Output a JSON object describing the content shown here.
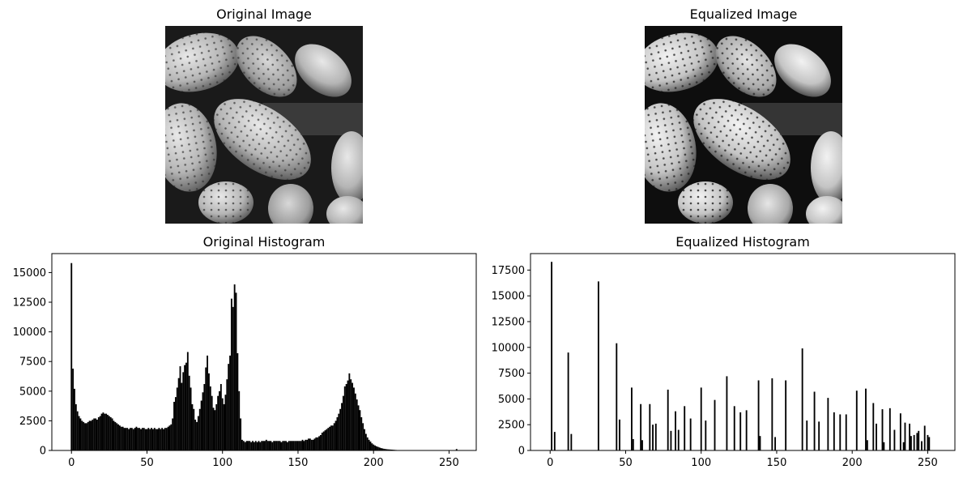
{
  "colors": {
    "bars": "#000000",
    "axes": "#000000",
    "background": "#ffffff"
  },
  "panels": {
    "original_image": {
      "title": "Original Image"
    },
    "equalized_image": {
      "title": "Equalized Image"
    },
    "original_histogram": {
      "title": "Original Histogram"
    },
    "equalized_histogram": {
      "title": "Equalized Histogram"
    }
  },
  "chart_data": [
    {
      "type": "bar",
      "title": "Original Histogram",
      "xlabel": "",
      "ylabel": "",
      "xlim": [
        -13,
        268
      ],
      "ylim": [
        0,
        16600
      ],
      "xticks": [
        0,
        50,
        100,
        150,
        200,
        250
      ],
      "yticks": [
        0,
        2500,
        5000,
        7500,
        10000,
        12500,
        15000
      ],
      "bins": [
        [
          0,
          15800
        ],
        [
          1,
          6900
        ],
        [
          2,
          5200
        ],
        [
          3,
          3900
        ],
        [
          4,
          3300
        ],
        [
          5,
          2900
        ],
        [
          6,
          2700
        ],
        [
          7,
          2500
        ],
        [
          8,
          2400
        ],
        [
          9,
          2300
        ],
        [
          10,
          2300
        ],
        [
          11,
          2400
        ],
        [
          12,
          2500
        ],
        [
          13,
          2500
        ],
        [
          14,
          2600
        ],
        [
          15,
          2700
        ],
        [
          16,
          2700
        ],
        [
          17,
          2600
        ],
        [
          18,
          2800
        ],
        [
          19,
          2900
        ],
        [
          20,
          3100
        ],
        [
          21,
          3200
        ],
        [
          22,
          3100
        ],
        [
          23,
          3100
        ],
        [
          24,
          3000
        ],
        [
          25,
          2900
        ],
        [
          26,
          2800
        ],
        [
          27,
          2700
        ],
        [
          28,
          2500
        ],
        [
          29,
          2400
        ],
        [
          30,
          2300
        ],
        [
          31,
          2200
        ],
        [
          32,
          2100
        ],
        [
          33,
          2000
        ],
        [
          34,
          2000
        ],
        [
          35,
          1900
        ],
        [
          36,
          1900
        ],
        [
          37,
          1900
        ],
        [
          38,
          1800
        ],
        [
          39,
          1900
        ],
        [
          40,
          1900
        ],
        [
          41,
          1800
        ],
        [
          42,
          1900
        ],
        [
          43,
          2000
        ],
        [
          44,
          1900
        ],
        [
          45,
          1900
        ],
        [
          46,
          1800
        ],
        [
          47,
          1900
        ],
        [
          48,
          1900
        ],
        [
          49,
          1800
        ],
        [
          50,
          1800
        ],
        [
          51,
          1900
        ],
        [
          52,
          1800
        ],
        [
          53,
          1900
        ],
        [
          54,
          1800
        ],
        [
          55,
          1900
        ],
        [
          56,
          1800
        ],
        [
          57,
          1800
        ],
        [
          58,
          1900
        ],
        [
          59,
          1800
        ],
        [
          60,
          1900
        ],
        [
          61,
          1800
        ],
        [
          62,
          1900
        ],
        [
          63,
          1900
        ],
        [
          64,
          2000
        ],
        [
          65,
          2100
        ],
        [
          66,
          2200
        ],
        [
          67,
          2700
        ],
        [
          68,
          4100
        ],
        [
          69,
          4500
        ],
        [
          70,
          5300
        ],
        [
          71,
          6100
        ],
        [
          72,
          7100
        ],
        [
          73,
          5700
        ],
        [
          74,
          6600
        ],
        [
          75,
          7200
        ],
        [
          76,
          7400
        ],
        [
          77,
          8300
        ],
        [
          78,
          6300
        ],
        [
          79,
          5300
        ],
        [
          80,
          3900
        ],
        [
          81,
          3500
        ],
        [
          82,
          2600
        ],
        [
          83,
          2400
        ],
        [
          84,
          2900
        ],
        [
          85,
          3500
        ],
        [
          86,
          4200
        ],
        [
          87,
          4900
        ],
        [
          88,
          5600
        ],
        [
          89,
          7000
        ],
        [
          90,
          8000
        ],
        [
          91,
          6500
        ],
        [
          92,
          5400
        ],
        [
          93,
          4600
        ],
        [
          94,
          3600
        ],
        [
          95,
          3400
        ],
        [
          96,
          3900
        ],
        [
          97,
          4600
        ],
        [
          98,
          5000
        ],
        [
          99,
          5600
        ],
        [
          100,
          4400
        ],
        [
          101,
          3900
        ],
        [
          102,
          4700
        ],
        [
          103,
          6000
        ],
        [
          104,
          7300
        ],
        [
          105,
          8000
        ],
        [
          106,
          12800
        ],
        [
          107,
          12100
        ],
        [
          108,
          14000
        ],
        [
          109,
          13300
        ],
        [
          110,
          8200
        ],
        [
          111,
          5000
        ],
        [
          112,
          2700
        ],
        [
          113,
          900
        ],
        [
          114,
          800
        ],
        [
          115,
          700
        ],
        [
          116,
          800
        ],
        [
          117,
          800
        ],
        [
          118,
          800
        ],
        [
          119,
          700
        ],
        [
          120,
          800
        ],
        [
          121,
          700
        ],
        [
          122,
          800
        ],
        [
          123,
          700
        ],
        [
          124,
          800
        ],
        [
          125,
          700
        ],
        [
          126,
          800
        ],
        [
          127,
          800
        ],
        [
          128,
          800
        ],
        [
          129,
          900
        ],
        [
          130,
          800
        ],
        [
          131,
          800
        ],
        [
          132,
          800
        ],
        [
          133,
          700
        ],
        [
          134,
          800
        ],
        [
          135,
          800
        ],
        [
          136,
          800
        ],
        [
          137,
          800
        ],
        [
          138,
          800
        ],
        [
          139,
          700
        ],
        [
          140,
          800
        ],
        [
          141,
          800
        ],
        [
          142,
          800
        ],
        [
          143,
          700
        ],
        [
          144,
          800
        ],
        [
          145,
          800
        ],
        [
          146,
          800
        ],
        [
          147,
          800
        ],
        [
          148,
          800
        ],
        [
          149,
          800
        ],
        [
          150,
          800
        ],
        [
          151,
          800
        ],
        [
          152,
          800
        ],
        [
          153,
          900
        ],
        [
          154,
          800
        ],
        [
          155,
          900
        ],
        [
          156,
          900
        ],
        [
          157,
          1000
        ],
        [
          158,
          1000
        ],
        [
          159,
          900
        ],
        [
          160,
          900
        ],
        [
          161,
          1000
        ],
        [
          162,
          1100
        ],
        [
          163,
          1100
        ],
        [
          164,
          1200
        ],
        [
          165,
          1300
        ],
        [
          166,
          1500
        ],
        [
          167,
          1600
        ],
        [
          168,
          1700
        ],
        [
          169,
          1800
        ],
        [
          170,
          1900
        ],
        [
          171,
          2000
        ],
        [
          172,
          2100
        ],
        [
          173,
          2100
        ],
        [
          174,
          2300
        ],
        [
          175,
          2500
        ],
        [
          176,
          2800
        ],
        [
          177,
          3100
        ],
        [
          178,
          3500
        ],
        [
          179,
          4000
        ],
        [
          180,
          4600
        ],
        [
          181,
          5400
        ],
        [
          182,
          5600
        ],
        [
          183,
          5900
        ],
        [
          184,
          6500
        ],
        [
          185,
          6000
        ],
        [
          186,
          5700
        ],
        [
          187,
          5300
        ],
        [
          188,
          4800
        ],
        [
          189,
          4300
        ],
        [
          190,
          3800
        ],
        [
          191,
          3400
        ],
        [
          192,
          2800
        ],
        [
          193,
          2300
        ],
        [
          194,
          1800
        ],
        [
          195,
          1400
        ],
        [
          196,
          1100
        ],
        [
          197,
          900
        ],
        [
          198,
          750
        ],
        [
          199,
          600
        ],
        [
          200,
          500
        ],
        [
          201,
          420
        ],
        [
          202,
          350
        ],
        [
          203,
          300
        ],
        [
          204,
          250
        ],
        [
          205,
          200
        ],
        [
          206,
          170
        ],
        [
          207,
          140
        ],
        [
          208,
          120
        ],
        [
          209,
          100
        ],
        [
          210,
          90
        ],
        [
          211,
          80
        ],
        [
          212,
          70
        ],
        [
          213,
          60
        ],
        [
          214,
          50
        ],
        [
          215,
          40
        ],
        [
          216,
          30
        ],
        [
          217,
          20
        ],
        [
          218,
          10
        ],
        [
          255,
          120
        ]
      ]
    },
    {
      "type": "bar",
      "title": "Equalized Histogram",
      "xlabel": "",
      "ylabel": "",
      "xlim": [
        -13,
        268
      ],
      "ylim": [
        0,
        19100
      ],
      "xticks": [
        0,
        50,
        100,
        150,
        200,
        250
      ],
      "yticks": [
        0,
        2500,
        5000,
        7500,
        10000,
        12500,
        15000,
        17500
      ],
      "bins": [
        [
          1,
          18300
        ],
        [
          3,
          1800
        ],
        [
          12,
          9500
        ],
        [
          14,
          1600
        ],
        [
          32,
          16400
        ],
        [
          44,
          10400
        ],
        [
          46,
          3000
        ],
        [
          54,
          6100
        ],
        [
          55,
          1100
        ],
        [
          60,
          4500
        ],
        [
          61,
          1000
        ],
        [
          66,
          4500
        ],
        [
          68,
          2500
        ],
        [
          70,
          2600
        ],
        [
          78,
          5900
        ],
        [
          80,
          1900
        ],
        [
          83,
          3800
        ],
        [
          85,
          2000
        ],
        [
          89,
          4300
        ],
        [
          93,
          3100
        ],
        [
          100,
          6100
        ],
        [
          103,
          2900
        ],
        [
          109,
          4900
        ],
        [
          117,
          7200
        ],
        [
          122,
          4300
        ],
        [
          126,
          3700
        ],
        [
          130,
          3900
        ],
        [
          138,
          6800
        ],
        [
          139,
          1400
        ],
        [
          147,
          7000
        ],
        [
          149,
          1300
        ],
        [
          156,
          6800
        ],
        [
          167,
          9900
        ],
        [
          170,
          2900
        ],
        [
          175,
          5700
        ],
        [
          178,
          2800
        ],
        [
          184,
          5100
        ],
        [
          188,
          3700
        ],
        [
          192,
          3500
        ],
        [
          196,
          3500
        ],
        [
          203,
          5800
        ],
        [
          209,
          6000
        ],
        [
          210,
          1000
        ],
        [
          214,
          4600
        ],
        [
          216,
          2600
        ],
        [
          220,
          4000
        ],
        [
          221,
          800
        ],
        [
          225,
          4100
        ],
        [
          228,
          2000
        ],
        [
          232,
          3600
        ],
        [
          234,
          800
        ],
        [
          235,
          2700
        ],
        [
          238,
          2600
        ],
        [
          239,
          1400
        ],
        [
          241,
          1500
        ],
        [
          243,
          1700
        ],
        [
          244,
          1900
        ],
        [
          246,
          900
        ],
        [
          248,
          2400
        ],
        [
          250,
          1500
        ],
        [
          251,
          1300
        ]
      ]
    }
  ]
}
